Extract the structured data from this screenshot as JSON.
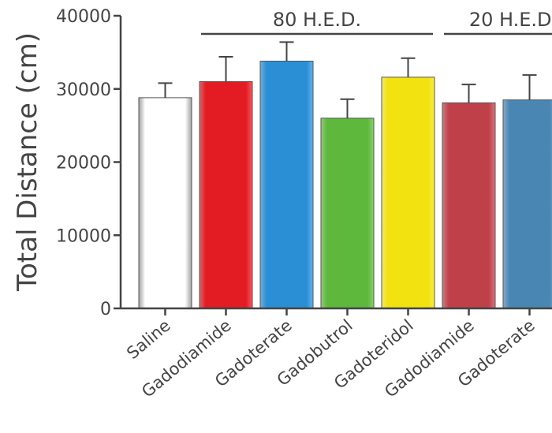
{
  "chart_data": {
    "type": "bar",
    "ylabel": "Total Distance (cm)",
    "ylim": [
      0,
      40000
    ],
    "yticks": [
      0,
      10000,
      20000,
      30000,
      40000
    ],
    "grid": false,
    "groups": [
      {
        "label": "80 H.E.D.",
        "from": 1,
        "to": 4
      },
      {
        "label": "20 H.E.D.",
        "from": 5,
        "to": 6
      }
    ],
    "categories": [
      "Saline",
      "Gadodiamide",
      "Gadoterate",
      "Gadobutrol",
      "Gadoteridol",
      "Gadodiamide",
      "Gadoterate"
    ],
    "values": [
      28800,
      31000,
      33800,
      26000,
      31600,
      28100,
      28500
    ],
    "errors": [
      2000,
      3400,
      2600,
      2600,
      2600,
      2500,
      3400
    ],
    "colors": [
      "#ffffff",
      "#e31b23",
      "#2b8fd6",
      "#5db83b",
      "#f2e20f",
      "#c0404a",
      "#4a86b3"
    ]
  }
}
